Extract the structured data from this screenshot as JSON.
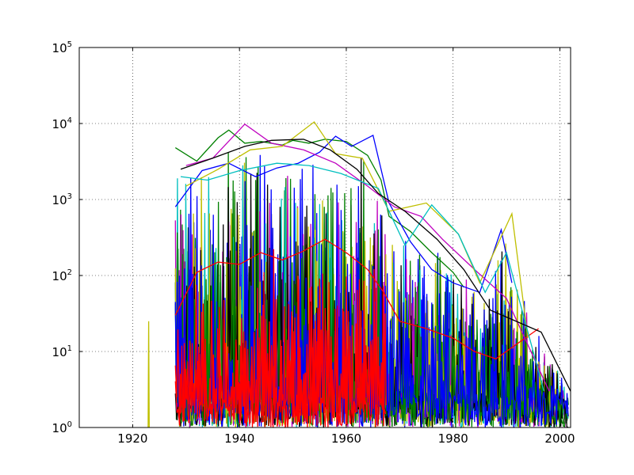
{
  "chart_data": {
    "type": "line",
    "title": "",
    "xlabel": "",
    "ylabel": "",
    "xlim": [
      1910,
      2002
    ],
    "ylim": [
      1,
      100000
    ],
    "y_scale": "log",
    "grid": true,
    "x_ticks": [
      1920,
      1940,
      1960,
      1980,
      2000
    ],
    "x_tick_labels": [
      "1920",
      "1940",
      "1960",
      "1980",
      "2000"
    ],
    "y_ticks": [
      1,
      10,
      100,
      1000,
      10000,
      100000
    ],
    "y_tick_labels": [
      {
        "base": "10",
        "exp": "0"
      },
      {
        "base": "10",
        "exp": "1"
      },
      {
        "base": "10",
        "exp": "2"
      },
      {
        "base": "10",
        "exp": "3"
      },
      {
        "base": "10",
        "exp": "4"
      },
      {
        "base": "10",
        "exp": "5"
      }
    ],
    "series_colors": [
      "#0000ff",
      "#008000",
      "#ff0000",
      "#00bfbf",
      "#bf00bf",
      "#bfbf00",
      "#000000"
    ],
    "series": [
      {
        "color": "#bfbf00",
        "x": [
          1922.9,
          1923.0,
          1923.1
        ],
        "y": [
          1,
          25,
          1
        ]
      },
      {
        "color": "#008000",
        "x": [
          1928.0,
          1932.0,
          1936.0,
          1938.0,
          1941.0,
          1944.0,
          1948.0,
          1950.0,
          1953.0,
          1956.0,
          1960.0,
          1964.0,
          1966.5,
          1968.0,
          1972.0,
          1976.0,
          1980.0,
          1982.0
        ],
        "y": [
          4800,
          3200,
          6500,
          8200,
          5500,
          5800,
          5200,
          6000,
          5500,
          6200,
          5800,
          3800,
          1800,
          600,
          380,
          200,
          110,
          70
        ]
      },
      {
        "color": "#0000ff",
        "x": [
          1928.0,
          1933.0,
          1938.0,
          1943.0,
          1947.0,
          1951.0,
          1955.0,
          1958.0,
          1961.0,
          1965.0,
          1968.0,
          1972.0,
          1976.0,
          1980.0,
          1985.0,
          1989.0,
          1991.0
        ],
        "y": [
          800,
          2400,
          3000,
          2000,
          2600,
          3000,
          4200,
          6800,
          5000,
          7000,
          900,
          280,
          120,
          80,
          60,
          400,
          80
        ]
      },
      {
        "color": "#ff0000",
        "x": [
          1928.0,
          1932.0,
          1936.0,
          1940.0,
          1944.0,
          1948.0,
          1952.0,
          1956.0,
          1960.0,
          1964.0,
          1967.0,
          1970.0,
          1975.0,
          1980.0,
          1984.0,
          1988.0,
          1996.0
        ],
        "y": [
          30,
          110,
          150,
          140,
          200,
          160,
          210,
          300,
          200,
          120,
          60,
          25,
          20,
          15,
          10,
          8,
          20
        ]
      },
      {
        "color": "#bf00bf",
        "x": [
          1930.0,
          1935.0,
          1941.0,
          1946.0,
          1952.0,
          1958.0,
          1964.0,
          1969.0,
          1974.0,
          1978.0,
          1984.0,
          1990.0,
          1998.0
        ],
        "y": [
          2800,
          3500,
          9800,
          5500,
          4500,
          3000,
          1500,
          800,
          600,
          300,
          120,
          50,
          3
        ]
      },
      {
        "color": "#bfbf00",
        "x": [
          1930.0,
          1936.0,
          1942.0,
          1948.0,
          1954.0,
          1958.0,
          1963.0,
          1968.0,
          1975.0,
          1981.0,
          1985.0,
          1991.0,
          1994.0
        ],
        "y": [
          1500,
          2500,
          4500,
          5000,
          10500,
          4000,
          3500,
          700,
          900,
          350,
          80,
          650,
          15
        ]
      },
      {
        "color": "#00bfbf",
        "x": [
          1929.0,
          1934.0,
          1940.0,
          1947.0,
          1953.0,
          1959.0,
          1966.0,
          1971.0,
          1976.0,
          1981.0,
          1986.0,
          1990.0,
          1997.0
        ],
        "y": [
          2000,
          1800,
          2400,
          3000,
          2800,
          2200,
          1400,
          250,
          850,
          350,
          60,
          200,
          3
        ]
      },
      {
        "color": "#000000",
        "x": [
          1929.0,
          1935.0,
          1941.0,
          1946.0,
          1952.0,
          1957.0,
          1962.0,
          1966.0,
          1971.0,
          1977.0,
          1982.0,
          1987.0,
          1996.5,
          2002.0
        ],
        "y": [
          2500,
          3500,
          5000,
          6000,
          6200,
          4500,
          2500,
          1200,
          700,
          300,
          120,
          35,
          18,
          3
        ]
      }
    ]
  }
}
